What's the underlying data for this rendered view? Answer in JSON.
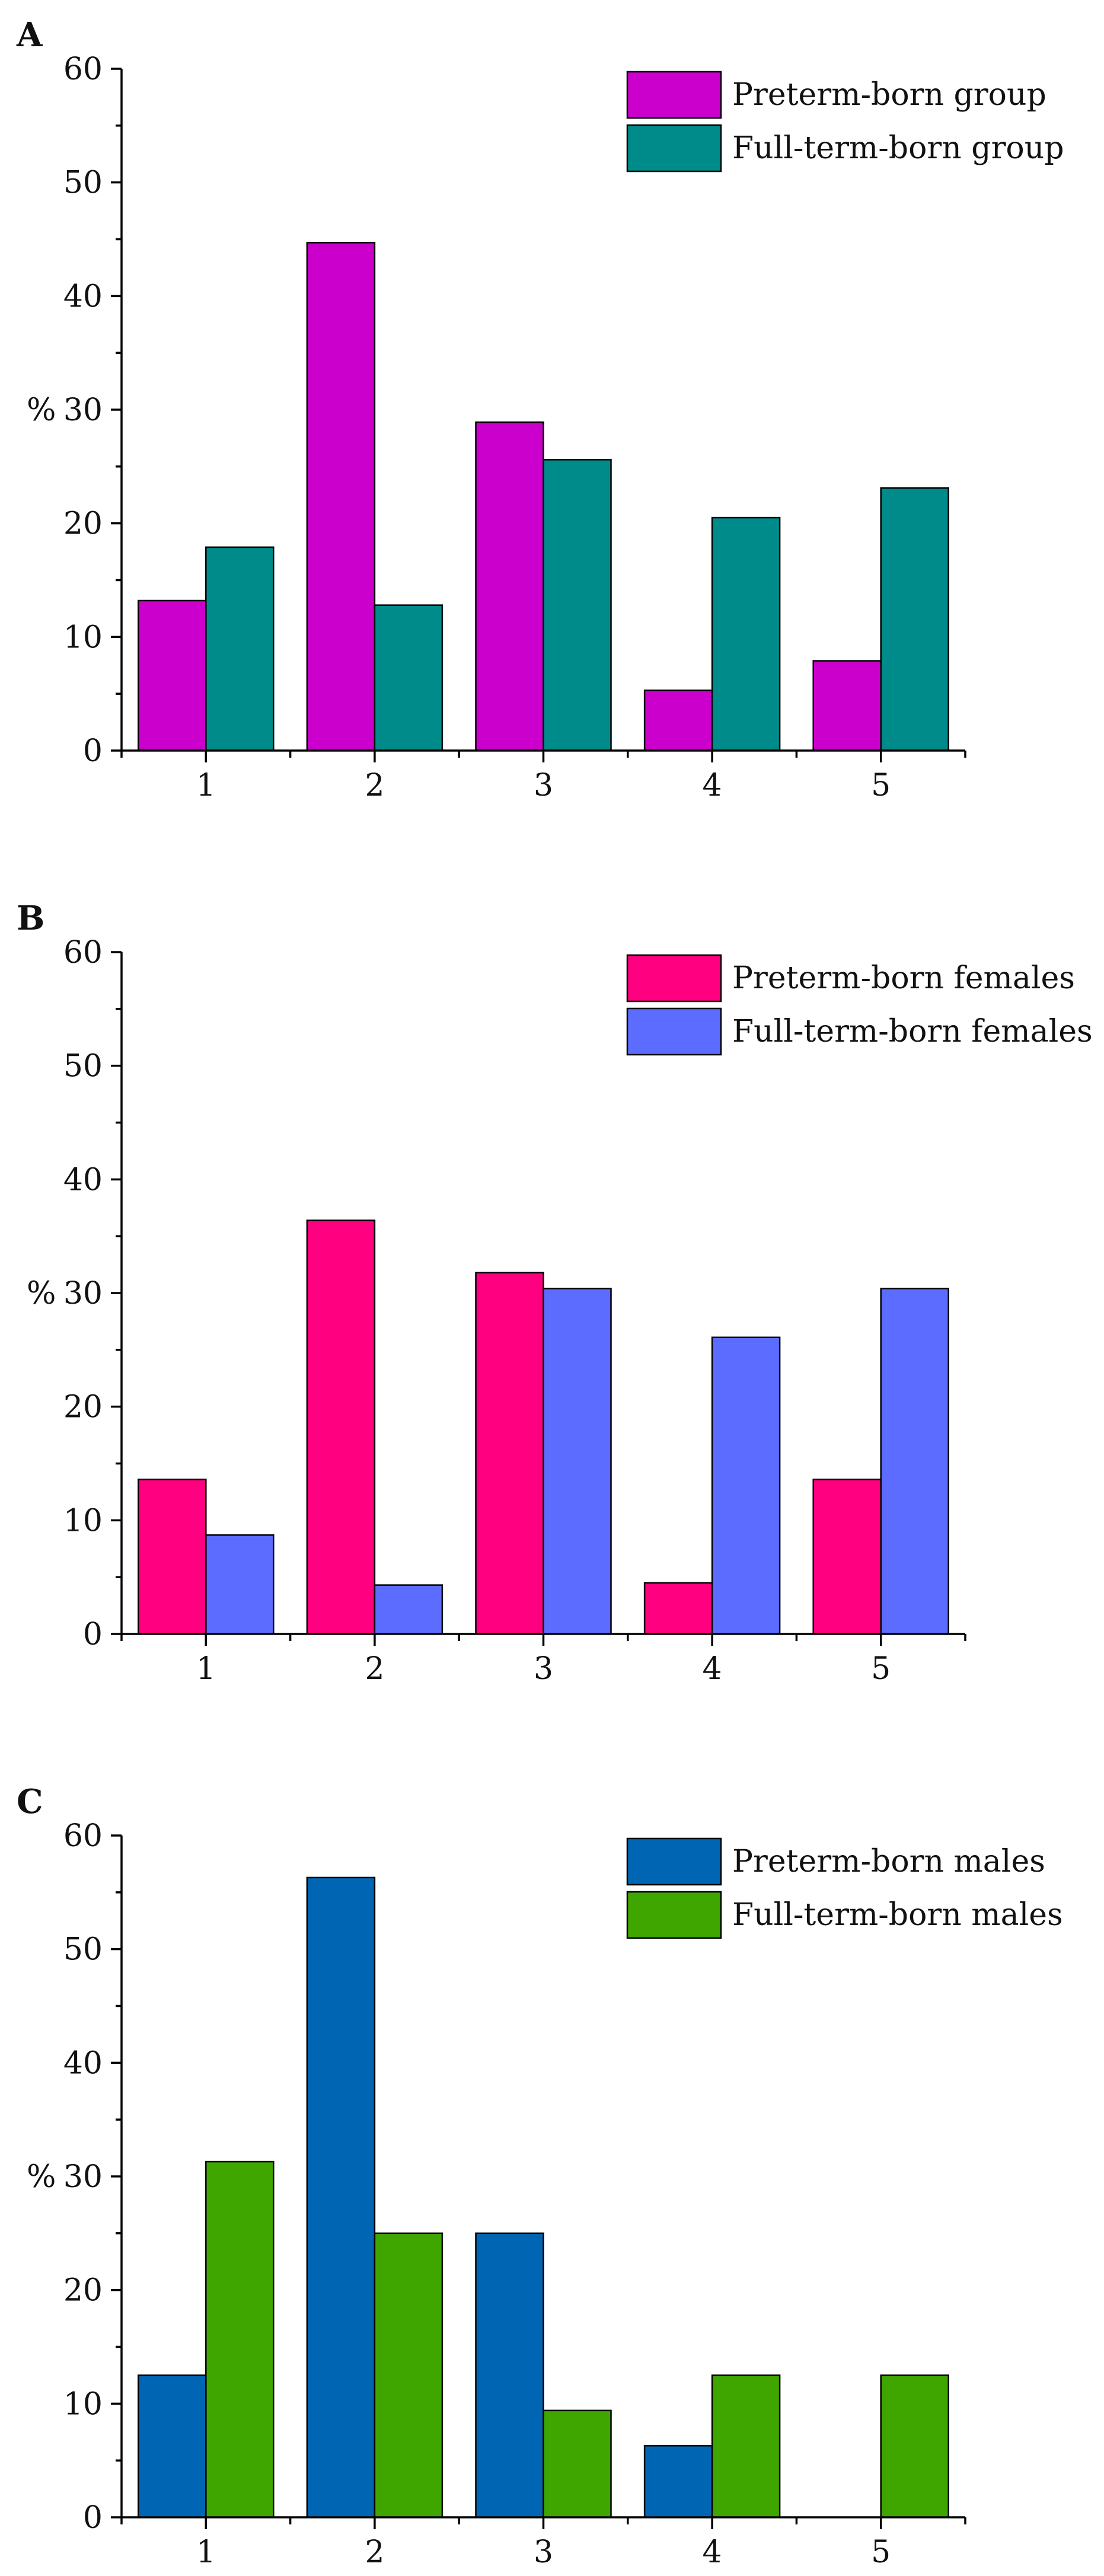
{
  "chart_data": [
    {
      "type": "bar",
      "panel_label": "A",
      "categories": [
        "1",
        "2",
        "3",
        "4",
        "5"
      ],
      "series": [
        {
          "name": "Preterm-born group",
          "color": "#cc00cc",
          "values": [
            13.2,
            44.7,
            28.9,
            5.3,
            7.9
          ]
        },
        {
          "name": "Full-term-born group",
          "color": "#008b8b",
          "values": [
            17.9,
            12.8,
            25.6,
            20.5,
            23.1
          ]
        }
      ],
      "title": "",
      "xlabel": "",
      "ylabel": "%",
      "ylim": [
        0,
        60
      ],
      "yticks": [
        "0",
        "10",
        "20",
        "30",
        "40",
        "50",
        "60"
      ],
      "legend_position": "top-right"
    },
    {
      "type": "bar",
      "panel_label": "B",
      "categories": [
        "1",
        "2",
        "3",
        "4",
        "5"
      ],
      "series": [
        {
          "name": "Preterm-born females",
          "color": "#ff0080",
          "values": [
            13.6,
            36.4,
            31.8,
            4.5,
            13.6
          ]
        },
        {
          "name": "Full-term-born females",
          "color": "#5c6cff",
          "values": [
            8.7,
            4.3,
            30.4,
            26.1,
            30.4
          ]
        }
      ],
      "title": "",
      "xlabel": "",
      "ylabel": "%",
      "ylim": [
        0,
        60
      ],
      "yticks": [
        "0",
        "10",
        "20",
        "30",
        "40",
        "50",
        "60"
      ],
      "legend_position": "top-right"
    },
    {
      "type": "bar",
      "panel_label": "C",
      "categories": [
        "1",
        "2",
        "3",
        "4",
        "5"
      ],
      "series": [
        {
          "name": "Preterm-born males",
          "color": "#0066b3",
          "values": [
            12.5,
            56.3,
            25.0,
            6.3,
            0
          ]
        },
        {
          "name": "Full-term-born males",
          "color": "#3fa600",
          "values": [
            31.3,
            25.0,
            9.4,
            12.5,
            12.5
          ]
        }
      ],
      "title": "",
      "xlabel": "",
      "ylabel": "%",
      "ylim": [
        0,
        60
      ],
      "yticks": [
        "0",
        "10",
        "20",
        "30",
        "40",
        "50",
        "60"
      ],
      "legend_position": "top-right"
    }
  ]
}
